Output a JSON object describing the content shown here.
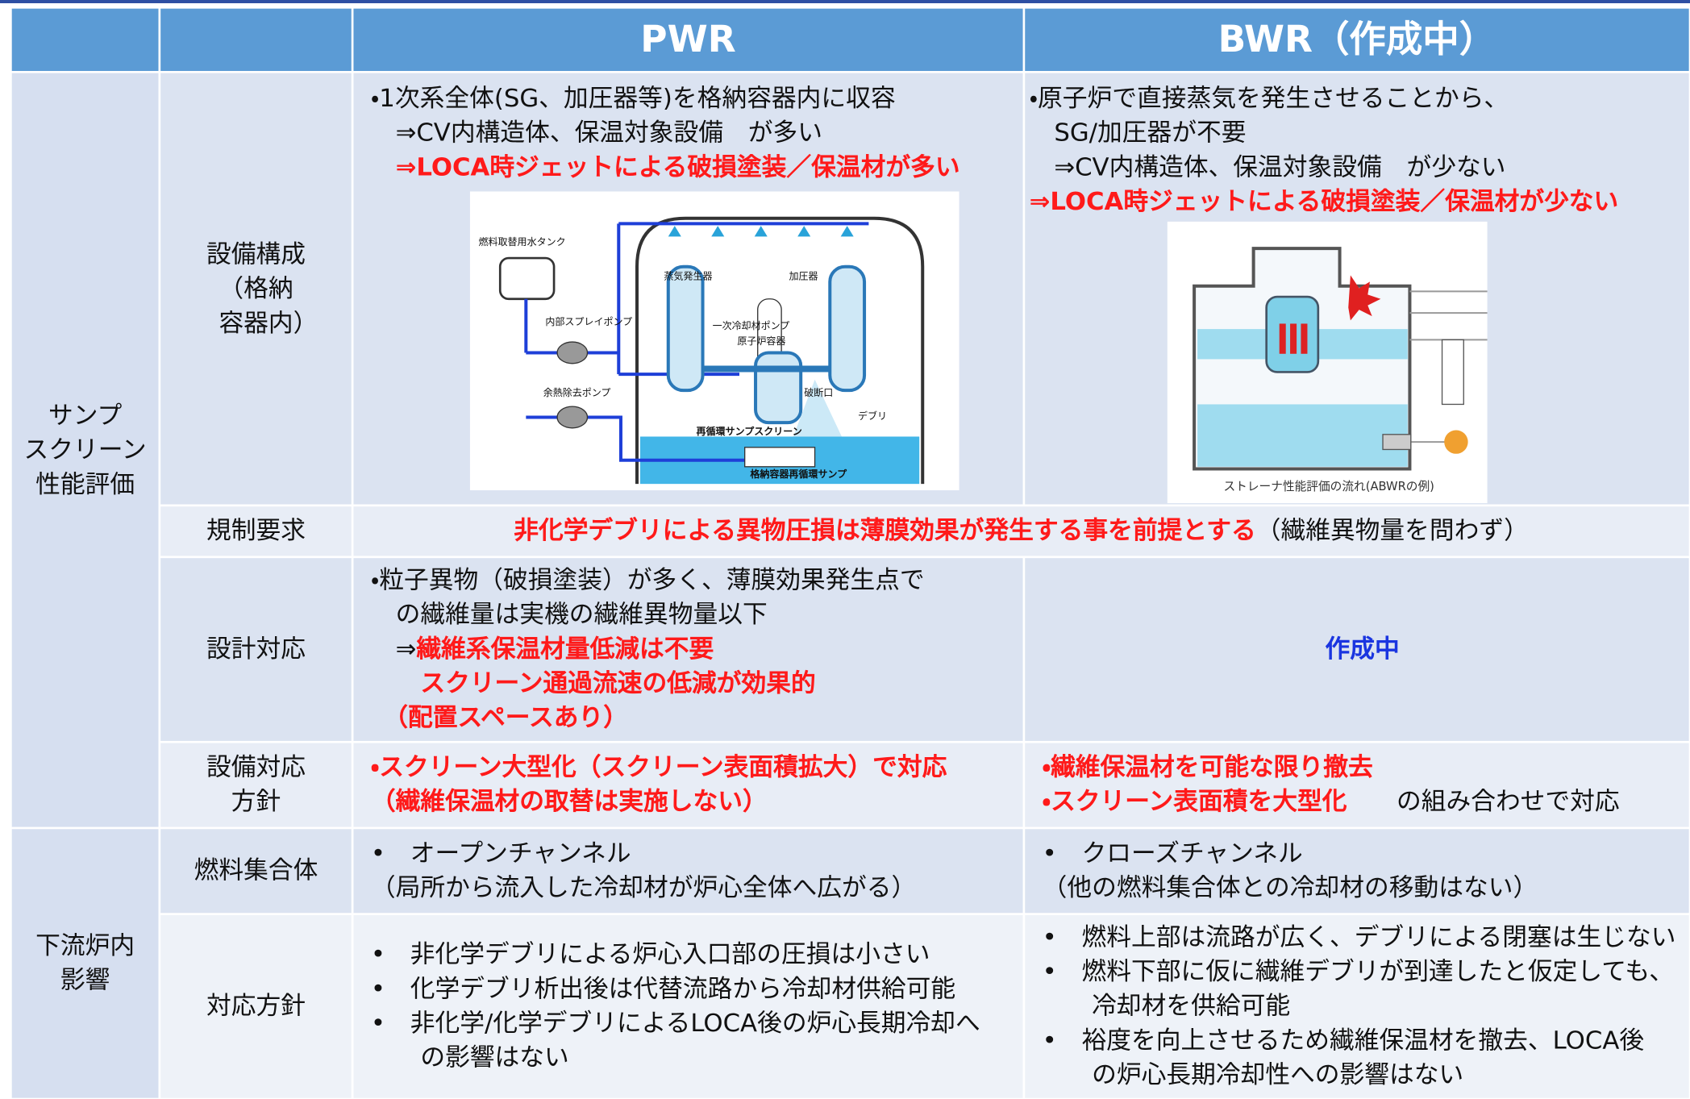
{
  "table": {
    "header": [
      "PWR",
      "BWR（作成中）"
    ],
    "groups": [
      {
        "lines": [
          "サンプ",
          "スクリーン",
          "性能評価"
        ]
      },
      {
        "lines": [
          "下流炉内",
          "影響"
        ]
      }
    ],
    "rows": [
      {
        "label": [
          "設備構成",
          "（格納",
          "　容器内）"
        ],
        "pwr": [
          [
            {
              "text": "・1次系全体(SG、加圧器等)を格納容器内に収容"
            }
          ],
          [
            {
              "text": "　⇒CV内構造体、保温対象設備　が多い"
            }
          ],
          [
            {
              "text": "　⇒LOCA時ジェットによる破損塗装／保温材が多い",
              "style": "red"
            }
          ]
        ],
        "bwr": [
          [
            {
              "text": "・原子炉で直接蒸気を発生させることから、"
            }
          ],
          [
            {
              "text": "　SG/加圧器が不要"
            }
          ],
          [
            {
              "text": "　⇒CV内構造体、保温対象設備　が少ない"
            }
          ],
          [
            {
              "text": "⇒LOCA時ジェットによる破損塗装／保温材が少ない",
              "style": "red"
            }
          ]
        ]
      },
      {
        "label": [
          "規制要求"
        ],
        "both": [
          [
            {
              "text": "非化学デブリによる異物圧損は薄膜効果が発生する事を前提とする",
              "style": "red"
            },
            {
              "text": "（繊維異物量を問わず）"
            }
          ]
        ]
      },
      {
        "label": [
          "設計対応"
        ],
        "pwr": [
          [
            {
              "text": "・粒子異物（破損塗装）が多く、薄膜効果発生点で"
            }
          ],
          [
            {
              "text": "　の繊維量は実機の繊維異物量以下"
            }
          ],
          [
            {
              "text": "　⇒"
            },
            {
              "text": "繊維系保温材量低減は不要",
              "style": "red"
            }
          ],
          [
            {
              "text": "　　スクリーン通過流速の低減が効果的",
              "style": "red"
            }
          ],
          [
            {
              "text": "　（配置スペースあり）",
              "style": "red"
            }
          ]
        ],
        "bwr": [
          [
            {
              "text": "作成中",
              "style": "blue"
            }
          ]
        ]
      },
      {
        "label": [
          "設備対応",
          "方針"
        ],
        "pwr": [
          [
            {
              "text": "・スクリーン大型化（スクリーン表面積拡大）で対応",
              "style": "red"
            }
          ],
          [
            {
              "text": "（繊維保温材の取替は実施しない）",
              "style": "red"
            }
          ]
        ],
        "bwr": [
          [
            {
              "text": "・繊維保温材を可能な限り撤去",
              "style": "red"
            }
          ],
          [
            {
              "text": "・スクリーン表面積を大型化",
              "style": "red"
            },
            {
              "text": "　　の組み合わせで対応"
            }
          ]
        ]
      },
      {
        "label": [
          "燃料集合体"
        ],
        "pwr": [
          [
            {
              "text": "•　オープンチャンネル"
            }
          ],
          [
            {
              "text": "（局所から流入した冷却材が炉心全体へ広がる）"
            }
          ]
        ],
        "bwr": [
          [
            {
              "text": "•　クローズチャンネル"
            }
          ],
          [
            {
              "text": "（他の燃料集合体との冷却材の移動はない）"
            }
          ]
        ]
      },
      {
        "label": [
          "対応方針"
        ],
        "pwr": [
          [
            {
              "text": "•　非化学デブリによる炉心入口部の圧損は小さい"
            }
          ],
          [
            {
              "text": "•　化学デブリ析出後は代替流路から冷却材供給可能"
            }
          ],
          [
            {
              "text": "•　非化学/化学デブリによるLOCA後の炉心長期冷却へ"
            }
          ],
          [
            {
              "text": "　　の影響はない"
            }
          ]
        ],
        "bwr": [
          [
            {
              "text": "•　燃料上部は流路が広く、デブリによる閉塞は生じない"
            }
          ],
          [
            {
              "text": "•　燃料下部に仮に繊維デブリが到達したと仮定しても、"
            }
          ],
          [
            {
              "text": "　　冷却材を供給可能"
            }
          ],
          [
            {
              "text": "•　裕度を向上させるため繊維保温材を撤去、LOCA後"
            }
          ],
          [
            {
              "text": "　　の炉心長期冷却性への影響はない"
            }
          ]
        ]
      }
    ]
  },
  "diagrams": {
    "pwr": {
      "labels": [
        "燃料取替用水タンク",
        "内部スプレイポンプ",
        "余熱除去ポンプ",
        "蒸気発生器",
        "加圧器",
        "一次冷却材ポンプ",
        "原子炉容器",
        "破断口",
        "デブリ",
        "再循環サンプスクリーン",
        "格納容器再循環サンプ"
      ]
    },
    "bwr": {
      "caption": "ストレーナ性能評価の流れ(ABWRの例)"
    }
  }
}
